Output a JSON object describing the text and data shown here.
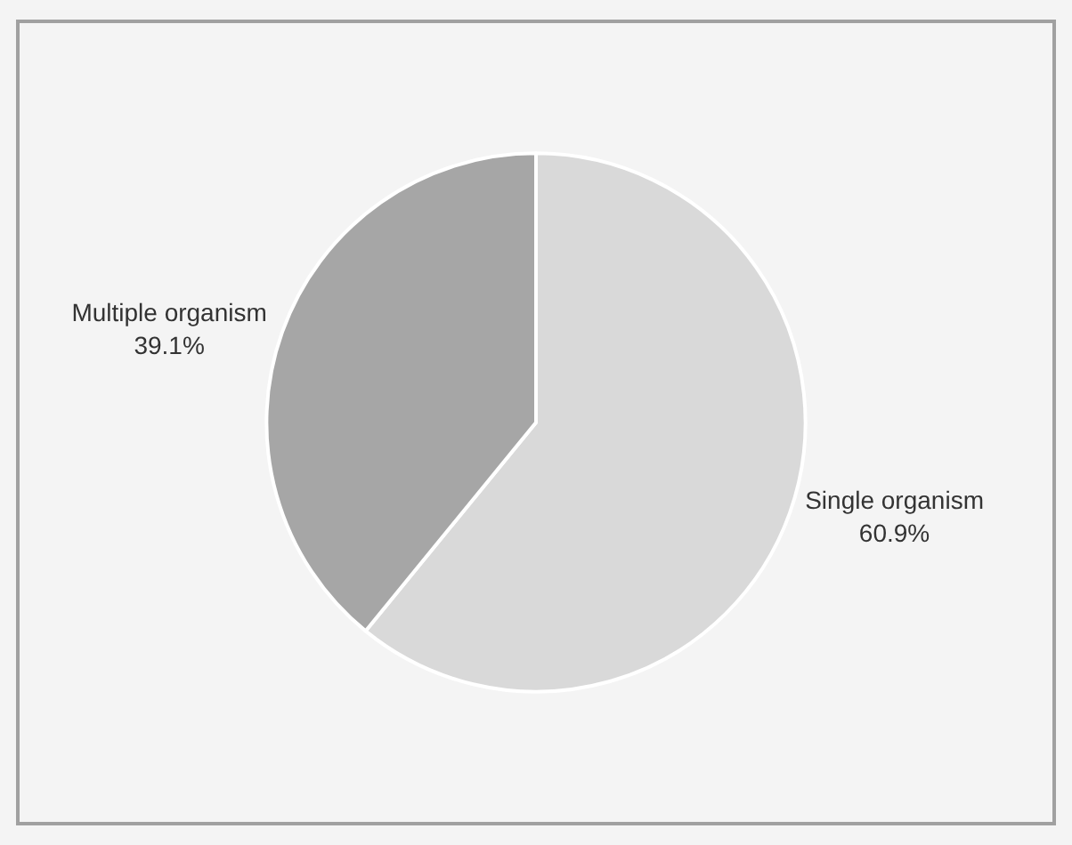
{
  "chart_data": {
    "type": "pie",
    "categories": [
      "Single organism",
      "Multiple organism"
    ],
    "values": [
      60.9,
      39.1
    ],
    "value_labels": [
      "60.9%",
      "39.1%"
    ],
    "colors": [
      "#d9d9d9",
      "#a6a6a6"
    ]
  }
}
